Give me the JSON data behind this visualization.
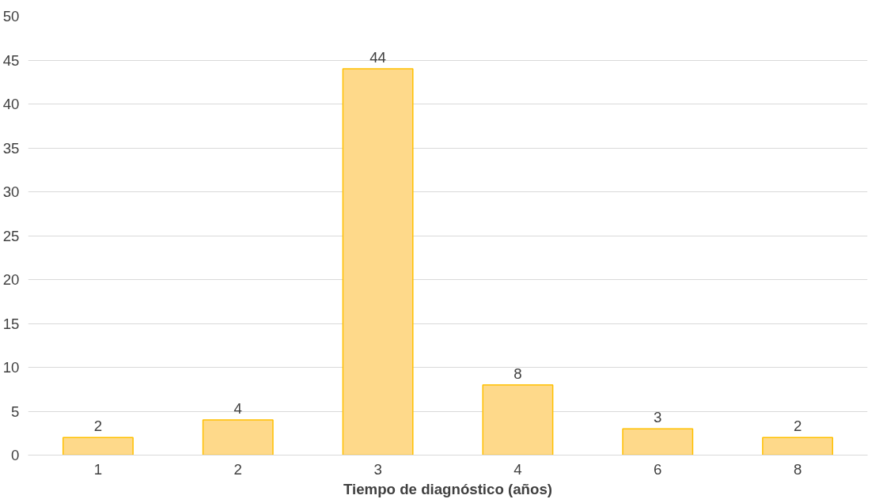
{
  "chart_data": {
    "type": "bar",
    "xlabel": "Tiempo de diagnóstico (años)",
    "categories": [
      "1",
      "2",
      "3",
      "4",
      "6",
      "8"
    ],
    "values": [
      2,
      4,
      44,
      8,
      3,
      2
    ],
    "color": "#fed98a",
    "ylim": [
      0,
      50
    ],
    "yticks": [
      0,
      5,
      10,
      15,
      20,
      25,
      30,
      35,
      40,
      45,
      50
    ],
    "grid": "y",
    "data_labels": true
  }
}
